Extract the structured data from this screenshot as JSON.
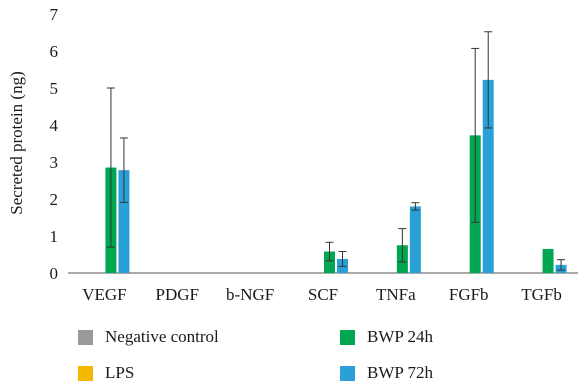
{
  "chart_data": {
    "type": "bar",
    "ylabel": "Secreted protein (ng)",
    "xlabel": "",
    "ylim": [
      0,
      7
    ],
    "yticks": [
      0,
      1,
      2,
      3,
      4,
      5,
      6,
      7
    ],
    "categories": [
      "VEGF",
      "PDGF",
      "b-NGF",
      "SCF",
      "TNFa",
      "FGFb",
      "TGFb"
    ],
    "series": [
      {
        "name": "Negative control",
        "color": "#999999",
        "values": [
          0,
          0,
          0,
          0,
          0,
          0,
          0
        ],
        "errors": [
          0,
          0,
          0,
          0,
          0,
          0,
          0
        ]
      },
      {
        "name": "LPS",
        "color": "#f5b800",
        "values": [
          0,
          0,
          0,
          0,
          0,
          0,
          0
        ],
        "errors": [
          0,
          0,
          0,
          0,
          0,
          0,
          0
        ]
      },
      {
        "name": "BWP 24h",
        "color": "#00a651",
        "values": [
          2.85,
          0,
          0,
          0.58,
          0.75,
          3.72,
          0.65
        ],
        "errors": [
          2.15,
          0,
          0,
          0.25,
          0.45,
          2.35,
          0
        ]
      },
      {
        "name": "BWP 72h",
        "color": "#2aa0d8",
        "values": [
          2.78,
          0,
          0,
          0.38,
          1.8,
          5.22,
          0.22
        ],
        "errors": [
          0.87,
          0,
          0,
          0.2,
          0.1,
          1.3,
          0.14
        ]
      }
    ],
    "grid": false,
    "legend_position": "bottom"
  }
}
